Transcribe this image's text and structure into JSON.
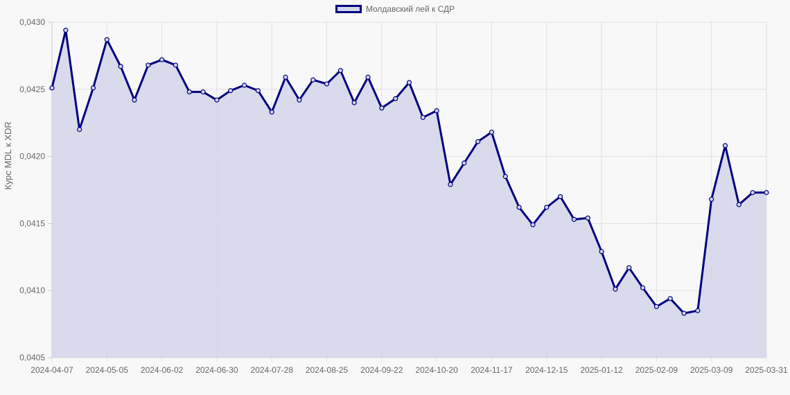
{
  "legend": {
    "label": "Молдавский лей к СДР",
    "border_color": "#000080",
    "fill_color": "#d3d5ea"
  },
  "y_axis_title": "Курс MDL к XDR",
  "chart_data": {
    "type": "area",
    "title": "",
    "xlabel": "",
    "ylabel": "Курс MDL к XDR",
    "ylim": [
      0.0405,
      0.043
    ],
    "y_ticks": [
      "0,0405",
      "0,0410",
      "0,0415",
      "0,0420",
      "0,0425",
      "0,0430"
    ],
    "x_tick_labels": [
      "2024-04-07",
      "2024-05-05",
      "2024-06-02",
      "2024-06-30",
      "2024-07-28",
      "2024-08-25",
      "2024-09-22",
      "2024-10-20",
      "2024-11-17",
      "2024-12-15",
      "2025-01-12",
      "2025-02-09",
      "2025-03-09",
      "2025-03-31"
    ],
    "x_tick_indices": [
      0,
      4,
      8,
      12,
      16,
      20,
      24,
      28,
      32,
      36,
      40,
      44,
      48,
      52
    ],
    "grid": true,
    "legend_position": "top",
    "series": [
      {
        "name": "Молдавский лей к СДР",
        "color": "#000080",
        "fill": "#d3d5ea",
        "values": [
          0.04251,
          0.04294,
          0.0422,
          0.04251,
          0.04287,
          0.04267,
          0.04242,
          0.04268,
          0.04272,
          0.04268,
          0.04248,
          0.04248,
          0.04242,
          0.04249,
          0.04253,
          0.04249,
          0.04233,
          0.04259,
          0.04242,
          0.04257,
          0.04254,
          0.04264,
          0.0424,
          0.04259,
          0.04236,
          0.04243,
          0.04255,
          0.04229,
          0.04234,
          0.04179,
          0.04195,
          0.04211,
          0.04218,
          0.04185,
          0.04162,
          0.04149,
          0.04162,
          0.0417,
          0.04153,
          0.04154,
          0.04129,
          0.04101,
          0.04117,
          0.04102,
          0.04088,
          0.04094,
          0.04083,
          0.04085,
          0.04168,
          0.04208,
          0.04164,
          0.04173,
          0.04173
        ]
      }
    ]
  }
}
